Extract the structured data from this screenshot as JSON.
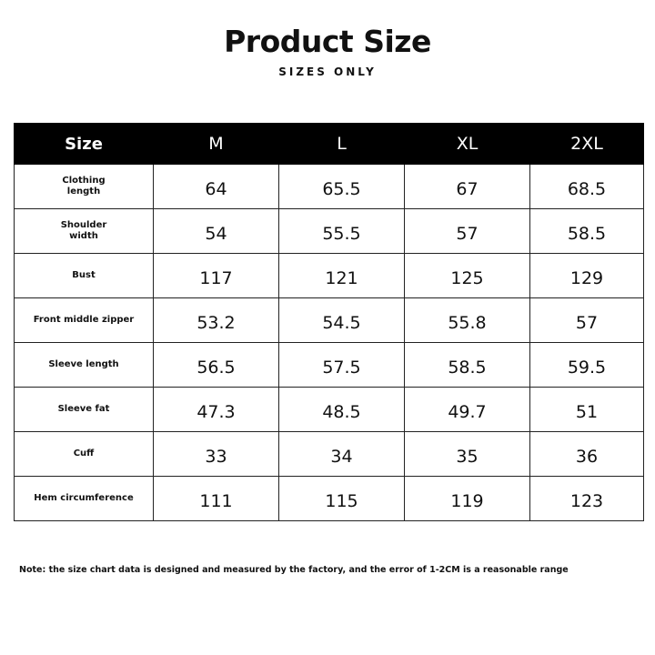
{
  "header": {
    "title": "Product Size",
    "subtitle": "SIZES ONLY"
  },
  "table": {
    "columns": [
      "Size",
      "M",
      "L",
      "XL",
      "2XL"
    ],
    "rows": [
      {
        "label": [
          "Clothing",
          "length"
        ],
        "values": [
          "64",
          "65.5",
          "67",
          "68.5"
        ]
      },
      {
        "label": [
          "Shoulder",
          "width"
        ],
        "values": [
          "54",
          "55.5",
          "57",
          "58.5"
        ]
      },
      {
        "label": [
          "Bust"
        ],
        "values": [
          "117",
          "121",
          "125",
          "129"
        ]
      },
      {
        "label": [
          "Front middle zipper"
        ],
        "values": [
          "53.2",
          "54.5",
          "55.8",
          "57"
        ]
      },
      {
        "label": [
          "Sleeve length"
        ],
        "values": [
          "56.5",
          "57.5",
          "58.5",
          "59.5"
        ]
      },
      {
        "label": [
          "Sleeve fat"
        ],
        "values": [
          "47.3",
          "48.5",
          "49.7",
          "51"
        ]
      },
      {
        "label": [
          "Cuff"
        ],
        "values": [
          "33",
          "34",
          "35",
          "36"
        ]
      },
      {
        "label": [
          "Hem circumference"
        ],
        "values": [
          "111",
          "115",
          "119",
          "123"
        ]
      }
    ]
  },
  "note": "Note: the size chart data is designed and measured by the factory, and the error of 1-2CM is a reasonable range"
}
